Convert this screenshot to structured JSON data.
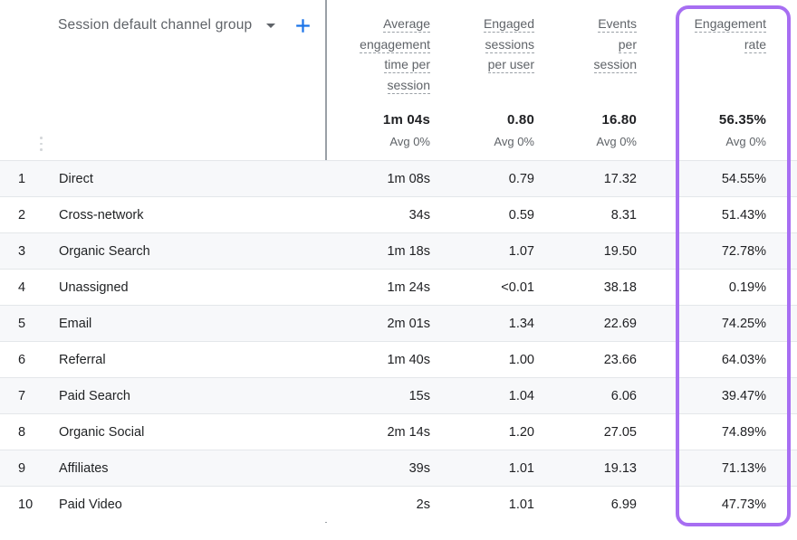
{
  "dimension": {
    "label": "Session default channel group",
    "dropdown_icon": "caret-down",
    "add_icon": "plus"
  },
  "columns": [
    {
      "label": "Average engagement time per session",
      "lines": [
        "Average",
        "engagement",
        "time per",
        "session"
      ],
      "total": "1m 04s",
      "avg": "Avg 0%",
      "highlighted": false
    },
    {
      "label": "Engaged sessions per user",
      "lines": [
        "Engaged",
        "sessions",
        "per user"
      ],
      "total": "0.80",
      "avg": "Avg 0%",
      "highlighted": false
    },
    {
      "label": "Events per session",
      "lines": [
        "Events",
        "per",
        "session"
      ],
      "total": "16.80",
      "avg": "Avg 0%",
      "highlighted": false
    },
    {
      "label": "Engagement rate",
      "lines": [
        "Engagement",
        "rate"
      ],
      "total": "56.35%",
      "avg": "Avg 0%",
      "highlighted": true
    }
  ],
  "rows": [
    {
      "index": "1",
      "channel": "Direct",
      "values": [
        "1m 08s",
        "0.79",
        "17.32",
        "54.55%"
      ]
    },
    {
      "index": "2",
      "channel": "Cross-network",
      "values": [
        "34s",
        "0.59",
        "8.31",
        "51.43%"
      ]
    },
    {
      "index": "3",
      "channel": "Organic Search",
      "values": [
        "1m 18s",
        "1.07",
        "19.50",
        "72.78%"
      ]
    },
    {
      "index": "4",
      "channel": "Unassigned",
      "values": [
        "1m 24s",
        "<0.01",
        "38.18",
        "0.19%"
      ]
    },
    {
      "index": "5",
      "channel": "Email",
      "values": [
        "2m 01s",
        "1.34",
        "22.69",
        "74.25%"
      ]
    },
    {
      "index": "6",
      "channel": "Referral",
      "values": [
        "1m 40s",
        "1.00",
        "23.66",
        "64.03%"
      ]
    },
    {
      "index": "7",
      "channel": "Paid Search",
      "values": [
        "15s",
        "1.04",
        "6.06",
        "39.47%"
      ]
    },
    {
      "index": "8",
      "channel": "Organic Social",
      "values": [
        "2m 14s",
        "1.20",
        "27.05",
        "74.89%"
      ]
    },
    {
      "index": "9",
      "channel": "Affiliates",
      "values": [
        "39s",
        "1.01",
        "19.13",
        "71.13%"
      ]
    },
    {
      "index": "10",
      "channel": "Paid Video",
      "values": [
        "2s",
        "1.01",
        "6.99",
        "47.73%"
      ]
    }
  ],
  "colors": {
    "accent_blue": "#1a73e8",
    "highlight_purple": "#a76ef2",
    "text_primary": "#202124",
    "text_secondary": "#5f6368",
    "row_stripe": "#f7f8fa",
    "divider_gray": "#9aa0a6"
  }
}
